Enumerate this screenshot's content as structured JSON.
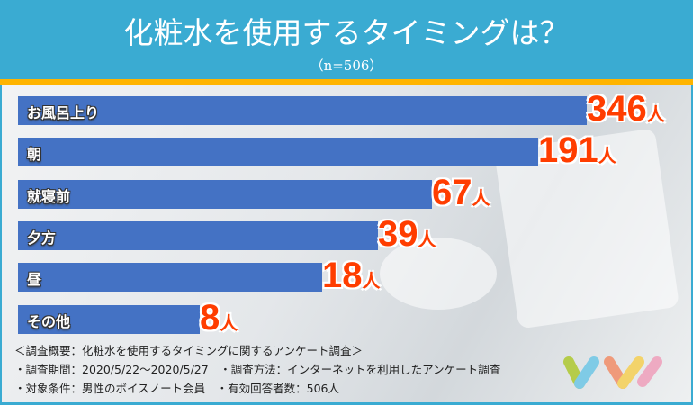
{
  "header": {
    "title": "化粧水を使用するタイミングは？",
    "subtitle": "（n=506）"
  },
  "chart_data": {
    "type": "bar",
    "orientation": "horizontal",
    "categories": [
      "お風呂上り",
      "朝",
      "就寝前",
      "夕方",
      "昼",
      "その他"
    ],
    "values": [
      346,
      191,
      67,
      39,
      18,
      8
    ],
    "unit": "人",
    "bar_color": "#4472c4",
    "value_color": "#ff3d00"
  },
  "notes": [
    "＜調査概要：化粧水を使用するタイミングに関するアンケート調査＞",
    "・調査期間：2020/5/22～2020/5/27　・調査方法：インターネットを利用したアンケート調査",
    "・対象条件：男性のボイスノート会員　・有効回答者数：506人"
  ],
  "colors": {
    "header": "#3aabd2",
    "accent": "#ffb400"
  }
}
